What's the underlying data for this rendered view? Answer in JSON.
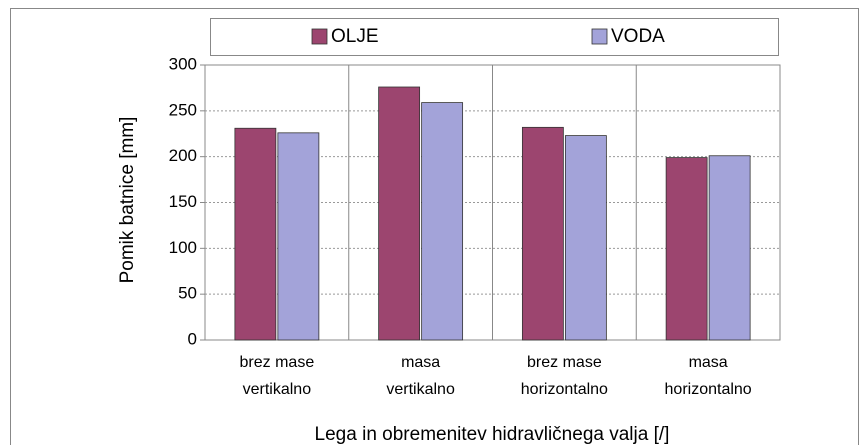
{
  "chart_data": {
    "type": "bar",
    "x_label": "Lega in obremenitev hidravličnega valja [/]",
    "y_label": "Pomik batnice [mm]",
    "categories": [
      [
        "brez mase",
        "vertikalno"
      ],
      [
        "masa",
        "vertikalno"
      ],
      [
        "brez mase",
        "horizontalno"
      ],
      [
        "masa",
        "horizontalno"
      ]
    ],
    "series": [
      {
        "name": "OLJE",
        "color": "#9c456f",
        "values": [
          231,
          276,
          232,
          199
        ]
      },
      {
        "name": "VODA",
        "color": "#a3a3d9",
        "values": [
          226,
          259,
          223,
          201
        ]
      }
    ],
    "ylim": [
      0,
      300
    ],
    "yticks": [
      0,
      50,
      100,
      150,
      200,
      250,
      300
    ],
    "grid": true,
    "legend": "top"
  }
}
